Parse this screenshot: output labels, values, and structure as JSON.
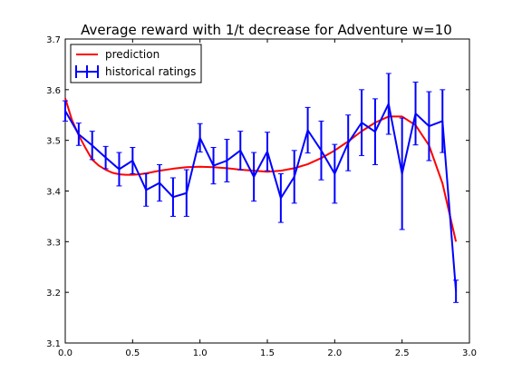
{
  "chart_data": {
    "type": "line",
    "title": "Average reward with 1/t decrease for Adventure w=10",
    "xlabel": "",
    "ylabel": "",
    "xlim": [
      0.0,
      3.0
    ],
    "ylim": [
      3.1,
      3.7
    ],
    "xticks": [
      0.0,
      0.5,
      1.0,
      1.5,
      2.0,
      2.5,
      3.0
    ],
    "xtick_labels": [
      "0.0",
      "0.5",
      "1.0",
      "1.5",
      "2.0",
      "2.5",
      "3.0"
    ],
    "yticks": [
      3.1,
      3.2,
      3.3,
      3.4,
      3.5,
      3.6,
      3.7
    ],
    "ytick_labels": [
      "3.1",
      "3.2",
      "3.3",
      "3.4",
      "3.5",
      "3.6",
      "3.7"
    ],
    "grid": false,
    "legend_position": "top-left",
    "series": [
      {
        "name": "prediction",
        "kind": "line",
        "color": "#ff0000",
        "x": [
          0.0,
          0.05,
          0.1,
          0.15,
          0.2,
          0.25,
          0.3,
          0.35,
          0.4,
          0.45,
          0.5,
          0.55,
          0.6,
          0.7,
          0.8,
          0.9,
          1.0,
          1.1,
          1.2,
          1.3,
          1.4,
          1.5,
          1.6,
          1.7,
          1.8,
          1.9,
          2.0,
          2.1,
          2.2,
          2.3,
          2.4,
          2.5,
          2.6,
          2.7,
          2.8,
          2.9
        ],
        "y": [
          3.583,
          3.54,
          3.51,
          3.485,
          3.462,
          3.45,
          3.442,
          3.436,
          3.433,
          3.432,
          3.432,
          3.433,
          3.435,
          3.44,
          3.444,
          3.447,
          3.448,
          3.447,
          3.445,
          3.442,
          3.44,
          3.438,
          3.44,
          3.445,
          3.453,
          3.465,
          3.48,
          3.498,
          3.518,
          3.535,
          3.547,
          3.547,
          3.53,
          3.49,
          3.415,
          3.3
        ]
      },
      {
        "name": "historical ratings",
        "kind": "errorbar",
        "color": "#0000ff",
        "x": [
          0.0,
          0.1,
          0.2,
          0.3,
          0.4,
          0.5,
          0.6,
          0.7,
          0.8,
          0.9,
          1.0,
          1.1,
          1.2,
          1.3,
          1.4,
          1.5,
          1.6,
          1.7,
          1.8,
          1.9,
          2.0,
          2.1,
          2.2,
          2.3,
          2.4,
          2.5,
          2.6,
          2.7,
          2.8,
          2.9
        ],
        "y": [
          3.558,
          3.512,
          3.49,
          3.466,
          3.443,
          3.46,
          3.402,
          3.416,
          3.388,
          3.396,
          3.505,
          3.45,
          3.46,
          3.48,
          3.428,
          3.478,
          3.386,
          3.428,
          3.52,
          3.48,
          3.434,
          3.495,
          3.535,
          3.517,
          3.572,
          3.434,
          3.553,
          3.528,
          3.538,
          3.202
        ],
        "err": [
          0.02,
          0.022,
          0.028,
          0.022,
          0.033,
          0.026,
          0.032,
          0.036,
          0.038,
          0.046,
          0.028,
          0.036,
          0.042,
          0.038,
          0.048,
          0.038,
          0.048,
          0.052,
          0.045,
          0.058,
          0.058,
          0.055,
          0.065,
          0.065,
          0.06,
          0.11,
          0.062,
          0.068,
          0.062,
          0.022
        ]
      }
    ]
  }
}
